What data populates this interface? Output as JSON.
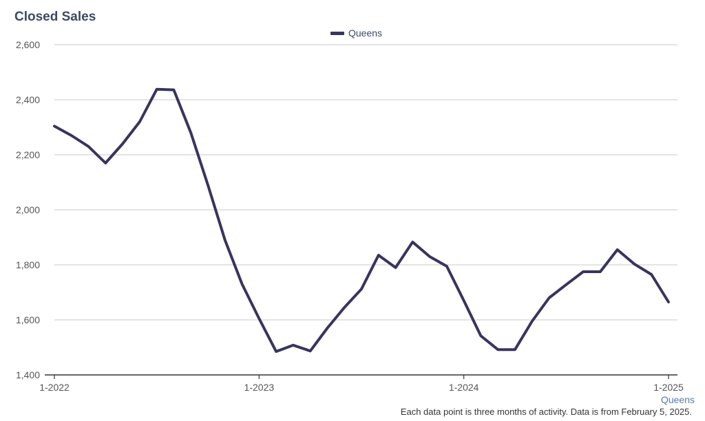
{
  "title": "Closed Sales",
  "legend": {
    "label": "Queens",
    "color": "#39345c"
  },
  "footnote": "Each data point is three months of activity. Data is from February 5, 2025.",
  "x_axis_series_label": "Queens",
  "chart_data": {
    "type": "line",
    "title": "Closed Sales",
    "xlabel": "",
    "ylabel": "",
    "ylim": [
      1400,
      2600
    ],
    "yticks": [
      "1,400",
      "1,600",
      "1,800",
      "2,000",
      "2,200",
      "2,400",
      "2,600"
    ],
    "ytick_values": [
      1400,
      1600,
      1800,
      2000,
      2200,
      2400,
      2600
    ],
    "xtick_labels": [
      "1-2022",
      "1-2023",
      "1-2024",
      "1-2025"
    ],
    "grid": true,
    "legend_position": "top-center",
    "series": [
      {
        "name": "Queens",
        "color": "#39345c",
        "x": [
          "1-2022",
          "2-2022",
          "3-2022",
          "4-2022",
          "5-2022",
          "6-2022",
          "7-2022",
          "8-2022",
          "9-2022",
          "10-2022",
          "11-2022",
          "12-2022",
          "1-2023",
          "2-2023",
          "3-2023",
          "4-2023",
          "5-2023",
          "6-2023",
          "7-2023",
          "8-2023",
          "9-2023",
          "10-2023",
          "11-2023",
          "12-2023",
          "1-2024",
          "2-2024",
          "3-2024",
          "4-2024",
          "5-2024",
          "6-2024",
          "7-2024",
          "8-2024",
          "9-2024",
          "10-2024",
          "11-2024",
          "12-2024",
          "1-2025"
        ],
        "values": [
          2304,
          2270,
          2230,
          2170,
          2240,
          2320,
          2438,
          2436,
          2280,
          2090,
          1890,
          1730,
          1605,
          1485,
          1508,
          1487,
          1570,
          1645,
          1712,
          1835,
          1790,
          1883,
          1830,
          1795,
          1670,
          1542,
          1492,
          1492,
          1595,
          1680,
          1728,
          1775,
          1775,
          1855,
          1803,
          1765,
          1665
        ]
      }
    ]
  }
}
